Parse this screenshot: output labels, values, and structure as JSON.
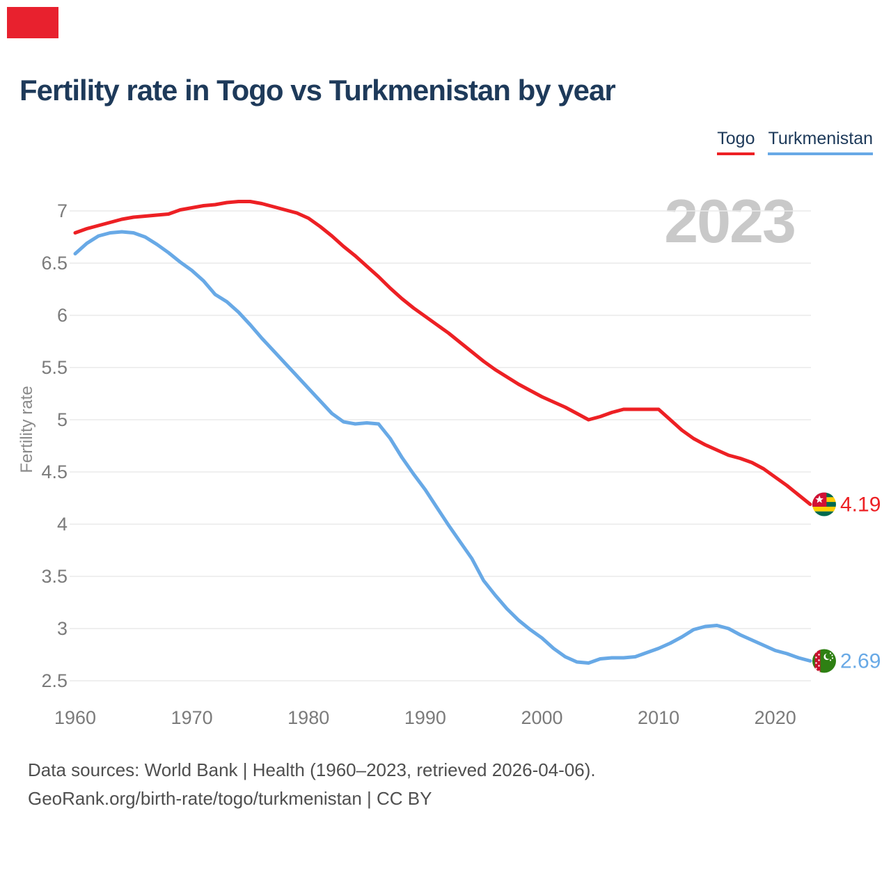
{
  "brand": {
    "color": "#e8212e"
  },
  "header": {
    "title": "Fertility rate in Togo vs Turkmenistan by year"
  },
  "legend": [
    {
      "label": "Togo",
      "color": "#ed2024"
    },
    {
      "label": "Turkmenistan",
      "color": "#68a9e6"
    }
  ],
  "watermark": "2023",
  "chart_data": {
    "type": "line",
    "title": "Fertility rate in Togo vs Turkmenistan by year",
    "xlabel": "",
    "ylabel": "Fertility rate",
    "xlim": [
      1960,
      2023
    ],
    "ylim": [
      2.5,
      7
    ],
    "grid": true,
    "legend_position": "top-right",
    "x_ticks": [
      1960,
      1970,
      1980,
      1990,
      2000,
      2010,
      2020
    ],
    "y_ticks": [
      7,
      6.5,
      6,
      5.5,
      5,
      4.5,
      4,
      3.5,
      3,
      2.5
    ],
    "years": [
      1960,
      1961,
      1962,
      1963,
      1964,
      1965,
      1966,
      1967,
      1968,
      1969,
      1970,
      1971,
      1972,
      1973,
      1974,
      1975,
      1976,
      1977,
      1978,
      1979,
      1980,
      1981,
      1982,
      1983,
      1984,
      1985,
      1986,
      1987,
      1988,
      1989,
      1990,
      1991,
      1992,
      1993,
      1994,
      1995,
      1996,
      1997,
      1998,
      1999,
      2000,
      2001,
      2002,
      2003,
      2004,
      2005,
      2006,
      2007,
      2008,
      2009,
      2010,
      2011,
      2012,
      2013,
      2014,
      2015,
      2016,
      2017,
      2018,
      2019,
      2020,
      2021,
      2022,
      2023
    ],
    "series": [
      {
        "name": "Togo",
        "color": "#ed2024",
        "end_label": "4.19",
        "values": [
          6.79,
          6.83,
          6.86,
          6.89,
          6.92,
          6.94,
          6.95,
          6.96,
          6.97,
          7.01,
          7.03,
          7.05,
          7.06,
          7.08,
          7.09,
          7.09,
          7.07,
          7.04,
          7.01,
          6.98,
          6.93,
          6.85,
          6.76,
          6.66,
          6.57,
          6.47,
          6.37,
          6.26,
          6.16,
          6.07,
          5.99,
          5.91,
          5.83,
          5.74,
          5.65,
          5.56,
          5.48,
          5.41,
          5.34,
          5.28,
          5.22,
          5.17,
          5.12,
          5.06,
          5.0,
          5.03,
          5.07,
          5.1,
          5.1,
          5.1,
          5.1,
          5.0,
          4.9,
          4.82,
          4.76,
          4.71,
          4.66,
          4.63,
          4.59,
          4.53,
          4.45,
          4.37,
          4.28,
          4.19
        ]
      },
      {
        "name": "Turkmenistan",
        "color": "#68a9e6",
        "end_label": "2.69",
        "values": [
          6.59,
          6.69,
          6.76,
          6.79,
          6.8,
          6.79,
          6.75,
          6.68,
          6.6,
          6.51,
          6.43,
          6.33,
          6.2,
          6.13,
          6.03,
          5.91,
          5.78,
          5.66,
          5.54,
          5.42,
          5.3,
          5.18,
          5.06,
          4.98,
          4.96,
          4.97,
          4.96,
          4.82,
          4.64,
          4.48,
          4.33,
          4.16,
          3.99,
          3.83,
          3.67,
          3.46,
          3.32,
          3.19,
          3.08,
          2.99,
          2.91,
          2.81,
          2.73,
          2.68,
          2.67,
          2.71,
          2.72,
          2.72,
          2.73,
          2.77,
          2.81,
          2.86,
          2.92,
          2.99,
          3.02,
          3.03,
          3.0,
          2.94,
          2.89,
          2.84,
          2.79,
          2.76,
          2.72,
          2.69
        ]
      }
    ]
  },
  "footer": {
    "line1": "Data sources: World Bank | Health (1960–2023, retrieved 2026-04-06).",
    "line2": "GeoRank.org/birth-rate/togo/turkmenistan | CC BY"
  }
}
